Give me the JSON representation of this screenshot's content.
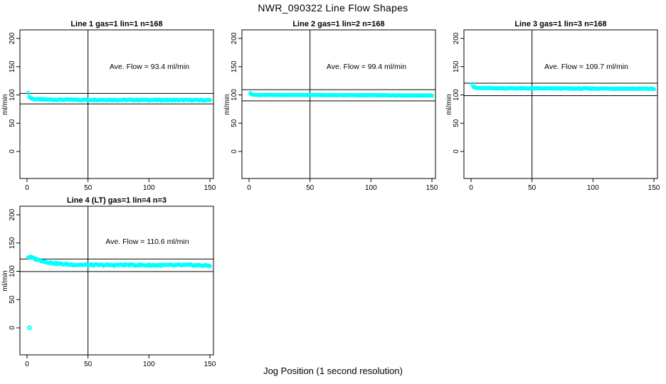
{
  "figure": {
    "title": "NWR_090322  Line Flow Shapes",
    "xlabel": "Jog Position (1 second resolution)",
    "background": "#FFFFFF",
    "point_color": "#00FFFF",
    "line_color": "#000000"
  },
  "chart_data": {
    "type": "scatter",
    "title": "NWR_090322  Line Flow Shapes",
    "xlabel": "Jog Position (1 second resolution)",
    "ylabel": "ml/min",
    "x_ticks": [
      0,
      50,
      100,
      150
    ],
    "y_ticks": [
      0,
      50,
      100,
      150,
      200
    ],
    "xlim": [
      -6,
      156
    ],
    "ylim": [
      -15,
      215
    ],
    "vline_x": 50,
    "grid": false,
    "point_color": "#00FFFF",
    "n_points_rendered": 168,
    "panels": [
      {
        "title": "Line 1 gas=1 lin=1 n=168",
        "n": 168,
        "ave_flow": 93.4,
        "annotation": "Ave. Flow =  93.4  ml/min",
        "ylabel": "ml/min",
        "hlines": [
          102.7,
          84.1
        ],
        "profile": [
          [
            1,
            103
          ],
          [
            2,
            96.5
          ],
          [
            3,
            94.5
          ],
          [
            5,
            93
          ],
          [
            8,
            92.3
          ],
          [
            15,
            91.8
          ],
          [
            30,
            91.5
          ],
          [
            60,
            91.3
          ],
          [
            100,
            91
          ],
          [
            150,
            90.8
          ]
        ],
        "jitter": 0.9,
        "outliers": []
      },
      {
        "title": "Line 2 gas=1 lin=2 n=168",
        "n": 168,
        "ave_flow": 99.4,
        "annotation": "Ave. Flow =  99.4  ml/min",
        "ylabel": "ml/min",
        "hlines": [
          109.3,
          89.5
        ],
        "profile": [
          [
            1,
            103
          ],
          [
            2,
            101
          ],
          [
            4,
            100.3
          ],
          [
            8,
            100
          ],
          [
            60,
            99.8
          ],
          [
            150,
            99
          ]
        ],
        "jitter": 0.4,
        "outliers": []
      },
      {
        "title": "Line 3 gas=1 lin=3 n=168",
        "n": 168,
        "ave_flow": 109.7,
        "annotation": "Ave. Flow =  109.7  ml/min",
        "ylabel": "ml/min",
        "hlines": [
          120.7,
          98.7
        ],
        "profile": [
          [
            1,
            120
          ],
          [
            2,
            114.5
          ],
          [
            3,
            113
          ],
          [
            5,
            112.3
          ],
          [
            10,
            112
          ],
          [
            40,
            111.6
          ],
          [
            80,
            111.3
          ],
          [
            120,
            111.2
          ],
          [
            150,
            110.8
          ]
        ],
        "jitter": 0.7,
        "outliers": []
      },
      {
        "title": "Line 4 (LT) gas=1 lin=4 n=3",
        "n": 3,
        "ave_flow": 110.6,
        "annotation": "Ave. Flow =  110.6  ml/min",
        "ylabel": "ml/min",
        "hlines": [
          121.7,
          99.5
        ],
        "profile": [
          [
            1,
            125
          ],
          [
            2,
            125.5
          ],
          [
            4,
            124
          ],
          [
            6,
            122.5
          ],
          [
            9,
            120.5
          ],
          [
            13,
            118
          ],
          [
            18,
            115.5
          ],
          [
            25,
            113.5
          ],
          [
            35,
            112
          ],
          [
            50,
            111.2
          ],
          [
            70,
            111
          ],
          [
            80,
            111.5
          ],
          [
            100,
            110.8
          ],
          [
            120,
            110.8
          ],
          [
            135,
            111
          ],
          [
            150,
            109.8
          ]
        ],
        "jitter": 1.3,
        "outliers": [
          [
            2,
            0
          ]
        ]
      }
    ]
  }
}
